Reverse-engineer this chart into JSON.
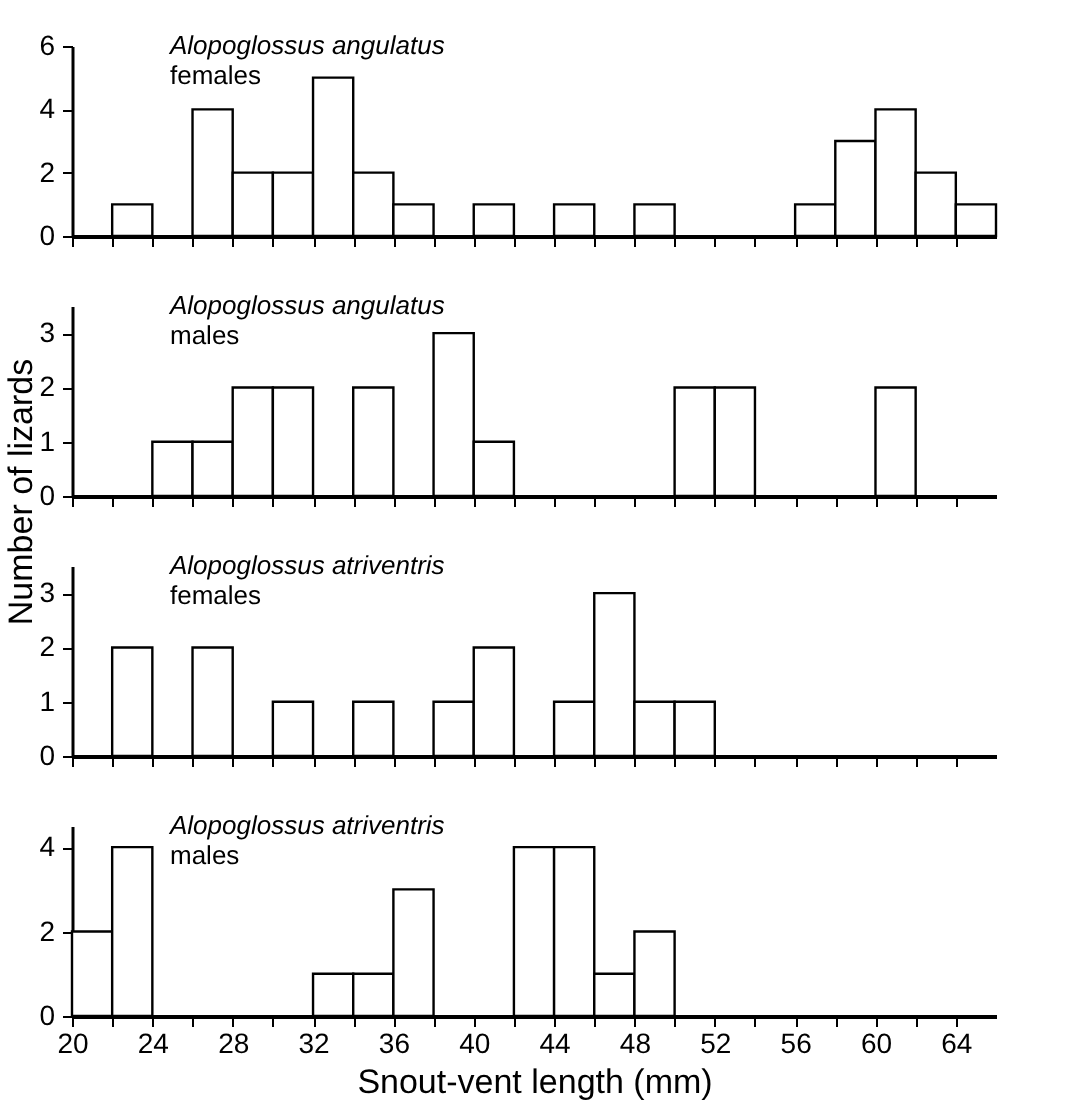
{
  "chart_data": [
    {
      "type": "histogram",
      "annotations": [
        "Alopoglossus angulatus",
        "females"
      ],
      "bins": [
        20,
        22,
        24,
        26,
        28,
        30,
        32,
        34,
        36,
        38,
        40,
        42,
        44,
        46,
        48,
        50,
        52,
        54,
        56,
        58,
        60,
        62,
        64,
        66
      ],
      "values": [
        0,
        1,
        0,
        4,
        2,
        2,
        5,
        2,
        1,
        0,
        1,
        0,
        1,
        0,
        1,
        0,
        0,
        0,
        1,
        3,
        4,
        2,
        1
      ],
      "xlim": [
        20,
        66
      ],
      "xticks": [
        20,
        {
          "value": 22,
          "label": null
        },
        24,
        {
          "value": 26,
          "label": null
        },
        28,
        {
          "value": 30,
          "label": null
        },
        32,
        {
          "value": 34,
          "label": null
        },
        36,
        {
          "value": 38,
          "label": null
        },
        40,
        {
          "value": 42,
          "label": null
        },
        44,
        {
          "value": 46,
          "label": null
        },
        48,
        {
          "value": 50,
          "label": null
        },
        52,
        {
          "value": 54,
          "label": null
        },
        56,
        {
          "value": 58,
          "label": null
        },
        60,
        {
          "value": 62,
          "label": null
        },
        64
      ],
      "ylim": [
        0,
        6
      ],
      "yticks": [
        0,
        2,
        4,
        6
      ],
      "tick_labels": "y",
      "grid": false,
      "color": "#ffffff"
    },
    {
      "type": "histogram",
      "annotations": [
        "Alopoglossus angulatus",
        "males"
      ],
      "ylabel": "Number of lizards",
      "bins": [
        20,
        22,
        24,
        26,
        28,
        30,
        32,
        34,
        36,
        38,
        40,
        42,
        44,
        46,
        48,
        50,
        52,
        54,
        56,
        58,
        60,
        62,
        64,
        66
      ],
      "values": [
        0,
        0,
        1,
        1,
        2,
        2,
        0,
        2,
        0,
        3,
        1,
        0,
        0,
        0,
        0,
        2,
        2,
        0,
        0,
        0,
        2,
        0,
        0
      ],
      "xlim": [
        20,
        66
      ],
      "xticks": [
        20,
        {
          "value": 22,
          "label": null
        },
        24,
        {
          "value": 26,
          "label": null
        },
        28,
        {
          "value": 30,
          "label": null
        },
        32,
        {
          "value": 34,
          "label": null
        },
        36,
        {
          "value": 38,
          "label": null
        },
        40,
        {
          "value": 42,
          "label": null
        },
        44,
        {
          "value": 46,
          "label": null
        },
        48,
        {
          "value": 50,
          "label": null
        },
        52,
        {
          "value": 54,
          "label": null
        },
        56,
        {
          "value": 58,
          "label": null
        },
        60,
        {
          "value": 62,
          "label": null
        },
        64
      ],
      "ylim": [
        0,
        3.5
      ],
      "yticks": [
        0,
        1,
        2,
        3
      ],
      "tick_labels": "y",
      "grid": false,
      "color": "#ffffff"
    },
    {
      "type": "histogram",
      "annotations": [
        "Alopoglossus atriventris",
        "females"
      ],
      "bins": [
        20,
        22,
        24,
        26,
        28,
        30,
        32,
        34,
        36,
        38,
        40,
        42,
        44,
        46,
        48,
        50,
        52,
        54,
        56,
        58,
        60,
        62,
        64,
        66
      ],
      "values": [
        0,
        2,
        0,
        2,
        0,
        1,
        0,
        1,
        0,
        1,
        2,
        0,
        1,
        3,
        1,
        1,
        0,
        0,
        0,
        0,
        0,
        0,
        0
      ],
      "xlim": [
        20,
        66
      ],
      "xticks": [
        20,
        {
          "value": 22,
          "label": null
        },
        24,
        {
          "value": 26,
          "label": null
        },
        28,
        {
          "value": 30,
          "label": null
        },
        32,
        {
          "value": 34,
          "label": null
        },
        36,
        {
          "value": 38,
          "label": null
        },
        40,
        {
          "value": 42,
          "label": null
        },
        44,
        {
          "value": 46,
          "label": null
        },
        48,
        {
          "value": 50,
          "label": null
        },
        52,
        {
          "value": 54,
          "label": null
        },
        56,
        {
          "value": 58,
          "label": null
        },
        60,
        {
          "value": 62,
          "label": null
        },
        64
      ],
      "ylim": [
        0,
        3.5
      ],
      "yticks": [
        0,
        1,
        2,
        3
      ],
      "tick_labels": "y",
      "grid": false,
      "color": "#ffffff"
    },
    {
      "type": "histogram",
      "annotations": [
        "Alopoglossus atriventris",
        "males"
      ],
      "xlabel": "Snout-vent length (mm)",
      "bins": [
        20,
        22,
        24,
        26,
        28,
        30,
        32,
        34,
        36,
        38,
        40,
        42,
        44,
        46,
        48,
        50,
        52,
        54,
        56,
        58,
        60,
        62,
        64,
        66
      ],
      "values": [
        2,
        4,
        0,
        0,
        0,
        0,
        1,
        1,
        3,
        0,
        0,
        4,
        4,
        1,
        2,
        0,
        0,
        0,
        0,
        0,
        0,
        0,
        0
      ],
      "xlim": [
        20,
        66
      ],
      "xticks": [
        20,
        {
          "value": 22,
          "label": null
        },
        24,
        {
          "value": 26,
          "label": null
        },
        28,
        {
          "value": 30,
          "label": null
        },
        32,
        {
          "value": 34,
          "label": null
        },
        36,
        {
          "value": 38,
          "label": null
        },
        40,
        {
          "value": 42,
          "label": null
        },
        44,
        {
          "value": 46,
          "label": null
        },
        48,
        {
          "value": 50,
          "label": null
        },
        52,
        {
          "value": 54,
          "label": null
        },
        56,
        {
          "value": 58,
          "label": null
        },
        60,
        {
          "value": 62,
          "label": null
        },
        64
      ],
      "ylim": [
        0,
        4.5
      ],
      "yticks": [
        0,
        2,
        4
      ],
      "grid": false,
      "color": "#ffffff"
    }
  ]
}
